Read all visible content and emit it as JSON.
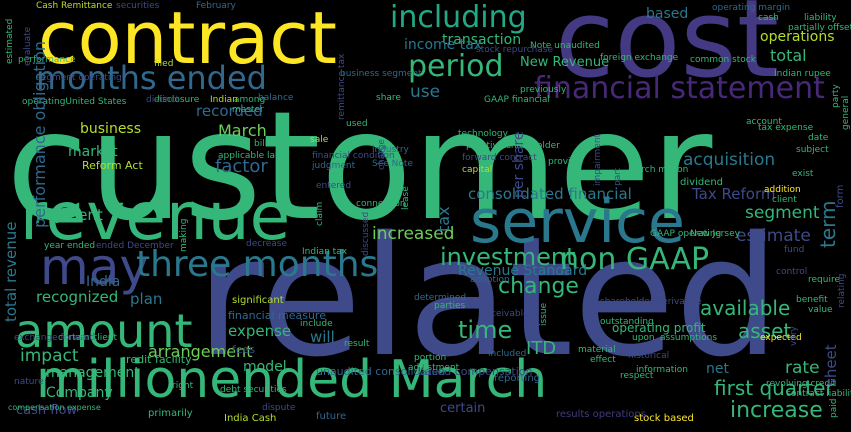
{
  "palette": {
    "background": "#000000",
    "green": "#35b779",
    "teal": "#2a788e",
    "blue": "#31688e",
    "indigo": "#3e4a89",
    "purple": "#443983",
    "violet": "#482878",
    "lime": "#6ece58",
    "yellow": "#fde725",
    "aqua": "#22a884",
    "chartreuse": "#b5de2b"
  },
  "words": [
    {
      "text": "customer",
      "color": "#35b779"
    },
    {
      "text": "related",
      "color": "#3e4a89"
    },
    {
      "text": "contract",
      "color": "#fde725"
    },
    {
      "text": "cost",
      "color": "#443983"
    },
    {
      "text": "revenue",
      "color": "#35b779"
    },
    {
      "text": "service",
      "color": "#2a788e"
    },
    {
      "text": "millionended March",
      "color": "#35b779"
    },
    {
      "text": "may",
      "color": "#3e4a89"
    },
    {
      "text": "three months",
      "color": "#2a788e"
    },
    {
      "text": "amount",
      "color": "#35b779"
    },
    {
      "text": "months ended",
      "color": "#31688e"
    },
    {
      "text": "including",
      "color": "#22a884"
    },
    {
      "text": "period",
      "color": "#35b779"
    },
    {
      "text": "financial statement",
      "color": "#482878"
    },
    {
      "text": "non GAAP",
      "color": "#35b779"
    },
    {
      "text": "investment",
      "color": "#35b779"
    },
    {
      "text": "time",
      "color": "#35b779"
    },
    {
      "text": "first quarter",
      "color": "#35b779"
    },
    {
      "text": "increase",
      "color": "#35b779"
    },
    {
      "text": "consolidated financial",
      "color": "#2a788e"
    },
    {
      "text": "Tax Reform",
      "color": "#3e4a89"
    },
    {
      "text": "segment",
      "color": "#35b779"
    },
    {
      "text": "estimate",
      "color": "#2a788e"
    },
    {
      "text": "increased",
      "color": "#3e4a89"
    },
    {
      "text": "change",
      "color": "#6ece58"
    },
    {
      "text": "available",
      "color": "#35b779"
    },
    {
      "text": "asset",
      "color": "#35b779"
    },
    {
      "text": "rate",
      "color": "#35b779"
    },
    {
      "text": "net",
      "color": "#35b779"
    },
    {
      "text": "acquisition",
      "color": "#2a788e"
    },
    {
      "text": "March",
      "color": "#2a788e"
    },
    {
      "text": "factor",
      "color": "#6ece58"
    },
    {
      "text": "recorded",
      "color": "#31688e"
    },
    {
      "text": "business",
      "color": "#31688e"
    },
    {
      "text": "market",
      "color": "#b5de2b"
    },
    {
      "text": "payment",
      "color": "#35b779"
    },
    {
      "text": "recognized",
      "color": "#31688e"
    },
    {
      "text": "plan",
      "color": "#35b779"
    },
    {
      "text": "India",
      "color": "#35b779"
    },
    {
      "text": "impact",
      "color": "#2a788e"
    },
    {
      "text": "arrangement",
      "color": "#31688e"
    },
    {
      "text": "expense",
      "color": "#35b779"
    },
    {
      "text": "will",
      "color": "#6ece58"
    },
    {
      "text": "model",
      "color": "#35b779"
    },
    {
      "text": "management",
      "color": "#2a788e"
    },
    {
      "text": "Company",
      "color": "#35b779"
    },
    {
      "text": "cash flow",
      "color": "#35b779"
    },
    {
      "text": "ITD",
      "color": "#35b779"
    },
    {
      "text": "Revenue Standard",
      "color": "#3e4a89"
    },
    {
      "text": "use",
      "color": "#35b779"
    },
    {
      "text": "transaction",
      "color": "#2a788e"
    },
    {
      "text": "income tax",
      "color": "#2a788e"
    },
    {
      "text": "based",
      "color": "#2a788e"
    },
    {
      "text": "operations",
      "color": "#35b779"
    },
    {
      "text": "total",
      "color": "#2a788e"
    },
    {
      "text": "New Revenue",
      "color": "#2a788e"
    },
    {
      "text": "Reform Act",
      "color": "#b5de2b"
    },
    {
      "text": "certain",
      "color": "#35b779"
    },
    {
      "text": "unaudited consolidated",
      "color": "#2a788e"
    },
    {
      "text": "based compensation",
      "color": "#3e4a89"
    },
    {
      "text": "significant",
      "color": "#35b779"
    },
    {
      "text": "operating profit",
      "color": "#3e4a89"
    },
    {
      "text": "fees",
      "color": "#b5de2b"
    },
    {
      "text": "financial measure",
      "color": "#3e4a89"
    },
    {
      "text": "credit facility",
      "color": "#31688e"
    },
    {
      "text": "stock based",
      "color": "#3e4a89"
    },
    {
      "text": "India Cash",
      "color": "#b5de2b"
    },
    {
      "text": "primarily",
      "color": "#35b779"
    },
    {
      "text": "future",
      "color": "#3e4a89"
    },
    {
      "text": "reporting",
      "color": "#31688e"
    },
    {
      "text": "results operations",
      "color": "#35b779"
    },
    {
      "text": "Cash Remittance",
      "color": "#fde725"
    },
    {
      "text": "securities",
      "color": "#b5de2b"
    },
    {
      "text": "February",
      "color": "#35b779"
    },
    {
      "text": "operating margin",
      "color": "#31688e"
    },
    {
      "text": "filed",
      "color": "#31688e"
    },
    {
      "text": "performance",
      "color": "#443983"
    },
    {
      "text": "Note unaudited",
      "color": "#b5de2b"
    },
    {
      "text": "foreign exchange",
      "color": "#3e4a89"
    },
    {
      "text": "common stock",
      "color": "#31688e"
    },
    {
      "text": "previously",
      "color": "#31688e"
    },
    {
      "text": "stock repurchase",
      "color": "#b5de2b"
    },
    {
      "text": "business segment",
      "color": "#35b779"
    },
    {
      "text": "Indian",
      "color": "#35b779"
    },
    {
      "text": "balance",
      "color": "#35b779"
    },
    {
      "text": "used",
      "color": "#35b779"
    },
    {
      "text": "sale",
      "color": "#35b779"
    },
    {
      "text": "industry",
      "color": "#3e4a89"
    },
    {
      "text": "forward contract",
      "color": "#31688e"
    },
    {
      "text": "capital",
      "color": "#b5de2b"
    },
    {
      "text": "financial condition",
      "color": "#31688e"
    },
    {
      "text": "judgment",
      "color": "#35b779"
    },
    {
      "text": "See Note",
      "color": "#b5de2b"
    },
    {
      "text": "applicable law",
      "color": "#31688e"
    },
    {
      "text": "billion",
      "color": "#3e4a89"
    },
    {
      "text": "entered",
      "color": "#b5de2b"
    },
    {
      "text": "decrease",
      "color": "#3e4a89"
    },
    {
      "text": "determined",
      "color": "#31688e"
    },
    {
      "text": "portion",
      "color": "#31688e"
    },
    {
      "text": "adjustment",
      "color": "#35b779"
    },
    {
      "text": "included",
      "color": "#35b779"
    },
    {
      "text": "adoption",
      "color": "#3e4a89"
    },
    {
      "text": "shareholder derivative",
      "color": "#3e4a89"
    },
    {
      "text": "outstanding",
      "color": "#31688e"
    },
    {
      "text": "material",
      "color": "#35b779"
    },
    {
      "text": "assumptions",
      "color": "#35b779"
    },
    {
      "text": "expected",
      "color": "#31688e"
    },
    {
      "text": "historical",
      "color": "#31688e"
    },
    {
      "text": "information",
      "color": "#3e4a89"
    },
    {
      "text": "result",
      "color": "#35b779"
    },
    {
      "text": "effect",
      "color": "#35b779"
    },
    {
      "text": "benefit",
      "color": "#35b779"
    },
    {
      "text": "dividend",
      "color": "#fde725"
    },
    {
      "text": "March million",
      "color": "#3e4a89"
    },
    {
      "text": "addition",
      "color": "#35b779"
    },
    {
      "text": "tax expense",
      "color": "#35b779"
    },
    {
      "text": "subject",
      "color": "#35b779"
    },
    {
      "text": "cash",
      "color": "#35b779"
    },
    {
      "text": "liability",
      "color": "#35b779"
    },
    {
      "text": "partially offset",
      "color": "#35b779"
    },
    {
      "text": "Indian rupee",
      "color": "#fde725"
    },
    {
      "text": "provide",
      "color": "#35b779"
    },
    {
      "text": "share",
      "color": "#35b779"
    },
    {
      "text": "master",
      "color": "#35b779"
    },
    {
      "text": "among",
      "color": "#35b779"
    },
    {
      "text": "disclosure",
      "color": "#35b779"
    },
    {
      "text": "distinct",
      "color": "#35b779"
    },
    {
      "text": "operatingUnited States",
      "color": "#3e4a89"
    },
    {
      "text": "segment operating",
      "color": "#3e4a89"
    },
    {
      "text": "year ended",
      "color": "#35b779"
    },
    {
      "text": "ended December",
      "color": "#35b779"
    },
    {
      "text": "exchange forward",
      "color": "#3e4a89"
    },
    {
      "text": "certain client",
      "color": "#3e4a89"
    },
    {
      "text": "compensation expense",
      "color": "#3e4a89"
    },
    {
      "text": "nature",
      "color": "#35b779"
    },
    {
      "text": "right",
      "color": "#35b779"
    },
    {
      "text": "include",
      "color": "#35b779"
    },
    {
      "text": "receivable",
      "color": "#3e4a89"
    },
    {
      "text": "parties",
      "color": "#35b779"
    },
    {
      "text": "putative shareholder",
      "color": "#3e4a89"
    },
    {
      "text": "technology",
      "color": "#35b779"
    },
    {
      "text": "debt securities",
      "color": "#3e4a89"
    },
    {
      "text": "GAAP financial",
      "color": "#3e4a89"
    },
    {
      "text": "GAAP operating",
      "color": "#35b779"
    },
    {
      "text": "New Jersey",
      "color": "#35b779"
    },
    {
      "text": "value",
      "color": "#3e4a89"
    },
    {
      "text": "fund",
      "color": "#35b779"
    },
    {
      "text": "exist",
      "color": "#35b779"
    },
    {
      "text": "date",
      "color": "#3e4a89"
    },
    {
      "text": "require",
      "color": "#35b779"
    },
    {
      "text": "control",
      "color": "#35b779"
    },
    {
      "text": "upon",
      "color": "#35b779"
    },
    {
      "text": "respect",
      "color": "#35b779"
    },
    {
      "text": "revolving credit",
      "color": "#35b779"
    },
    {
      "text": "Indian tax",
      "color": "#3e4a89"
    },
    {
      "text": "connection",
      "color": "#35b779"
    },
    {
      "text": "dispute",
      "color": "#35b779"
    },
    {
      "text": "account",
      "color": "#35b779"
    },
    {
      "text": "client",
      "color": "#35b779"
    },
    {
      "text": "contract liability",
      "color": "#35b779"
    },
    {
      "text": "total revenue",
      "color": "#3e4a89"
    },
    {
      "text": "performance obligation",
      "color": "#3e4a89"
    },
    {
      "text": "tax",
      "color": "#35b779"
    },
    {
      "text": "per share",
      "color": "#3e4a89"
    },
    {
      "text": "term",
      "color": "#35b779"
    },
    {
      "text": "sheet",
      "color": "#35b779"
    },
    {
      "text": "form",
      "color": "#35b779"
    },
    {
      "text": "relating",
      "color": "#3e4a89"
    },
    {
      "text": "impairment",
      "color": "#35b779"
    },
    {
      "text": "part",
      "color": "#35b779"
    },
    {
      "text": "remittance tax",
      "color": "#35b779"
    },
    {
      "text": "discussed",
      "color": "#35b779"
    },
    {
      "text": "estimated",
      "color": "#3e4a89"
    },
    {
      "text": "charge",
      "color": "#35b779"
    },
    {
      "text": "evaluate",
      "color": "#35b779"
    },
    {
      "text": "party",
      "color": "#35b779"
    },
    {
      "text": "general",
      "color": "#3e4a89"
    },
    {
      "text": "vary",
      "color": "#35b779"
    },
    {
      "text": "paid",
      "color": "#35b779"
    },
    {
      "text": "claim",
      "color": "#35b779"
    },
    {
      "text": "making",
      "color": "#35b779"
    },
    {
      "text": "issue",
      "color": "#35b779"
    },
    {
      "text": "lease",
      "color": "#35b779"
    }
  ]
}
